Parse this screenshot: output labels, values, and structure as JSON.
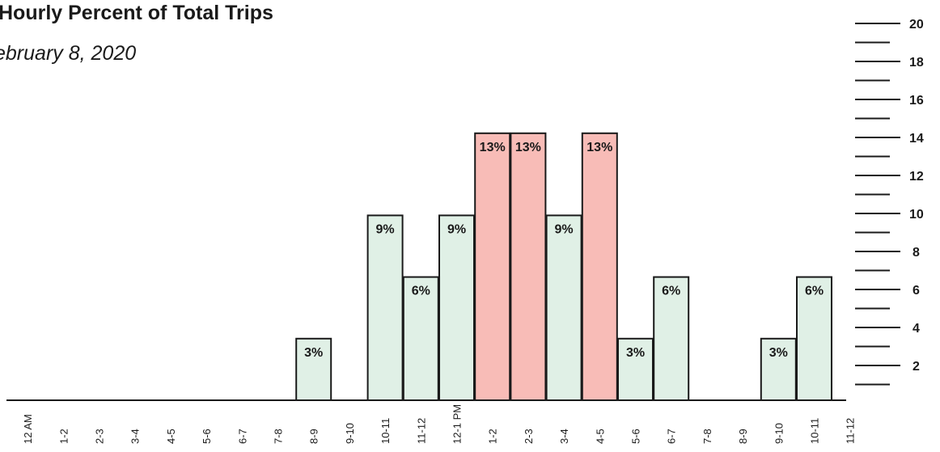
{
  "chart_data": {
    "type": "bar",
    "title": "Hourly Percent of Total Trips",
    "subtitle": "ebruary 8, 2020",
    "categories": [
      "12 AM",
      "1-2",
      "2-3",
      "3-4",
      "4-5",
      "5-6",
      "6-7",
      "7-8",
      "8-9",
      "9-10",
      "10-11",
      "11-12",
      "12-1 PM",
      "1-2",
      "2-3",
      "3-4",
      "4-5",
      "5-6",
      "6-7",
      "7-8",
      "8-9",
      "9-10",
      "10-11",
      "11-12"
    ],
    "values": [
      0,
      0,
      0,
      0,
      0,
      0,
      0,
      0,
      3,
      0,
      9,
      6,
      9,
      13,
      13,
      9,
      13,
      3,
      6,
      0,
      0,
      3,
      6,
      0
    ],
    "data_labels": [
      "",
      "",
      "",
      "",
      "",
      "",
      "",
      "",
      "3%",
      "",
      "9%",
      "6%",
      "9%",
      "13%",
      "13%",
      "9%",
      "13%",
      "3%",
      "6%",
      "",
      "",
      "3%",
      "6%",
      ""
    ],
    "highlight": [
      false,
      false,
      false,
      false,
      false,
      false,
      false,
      false,
      false,
      false,
      false,
      false,
      false,
      true,
      true,
      false,
      true,
      false,
      false,
      false,
      false,
      false,
      false,
      false
    ],
    "ylim": [
      0,
      20
    ],
    "y_ticks": [
      "2",
      "4",
      "6",
      "8",
      "10",
      "12",
      "14",
      "16",
      "18",
      "20"
    ],
    "colors": {
      "normal": "#e0f0e6",
      "highlight": "#f8bcb7",
      "stroke": "#1a1a1a"
    },
    "grid": false,
    "xlabel": "",
    "ylabel": ""
  }
}
